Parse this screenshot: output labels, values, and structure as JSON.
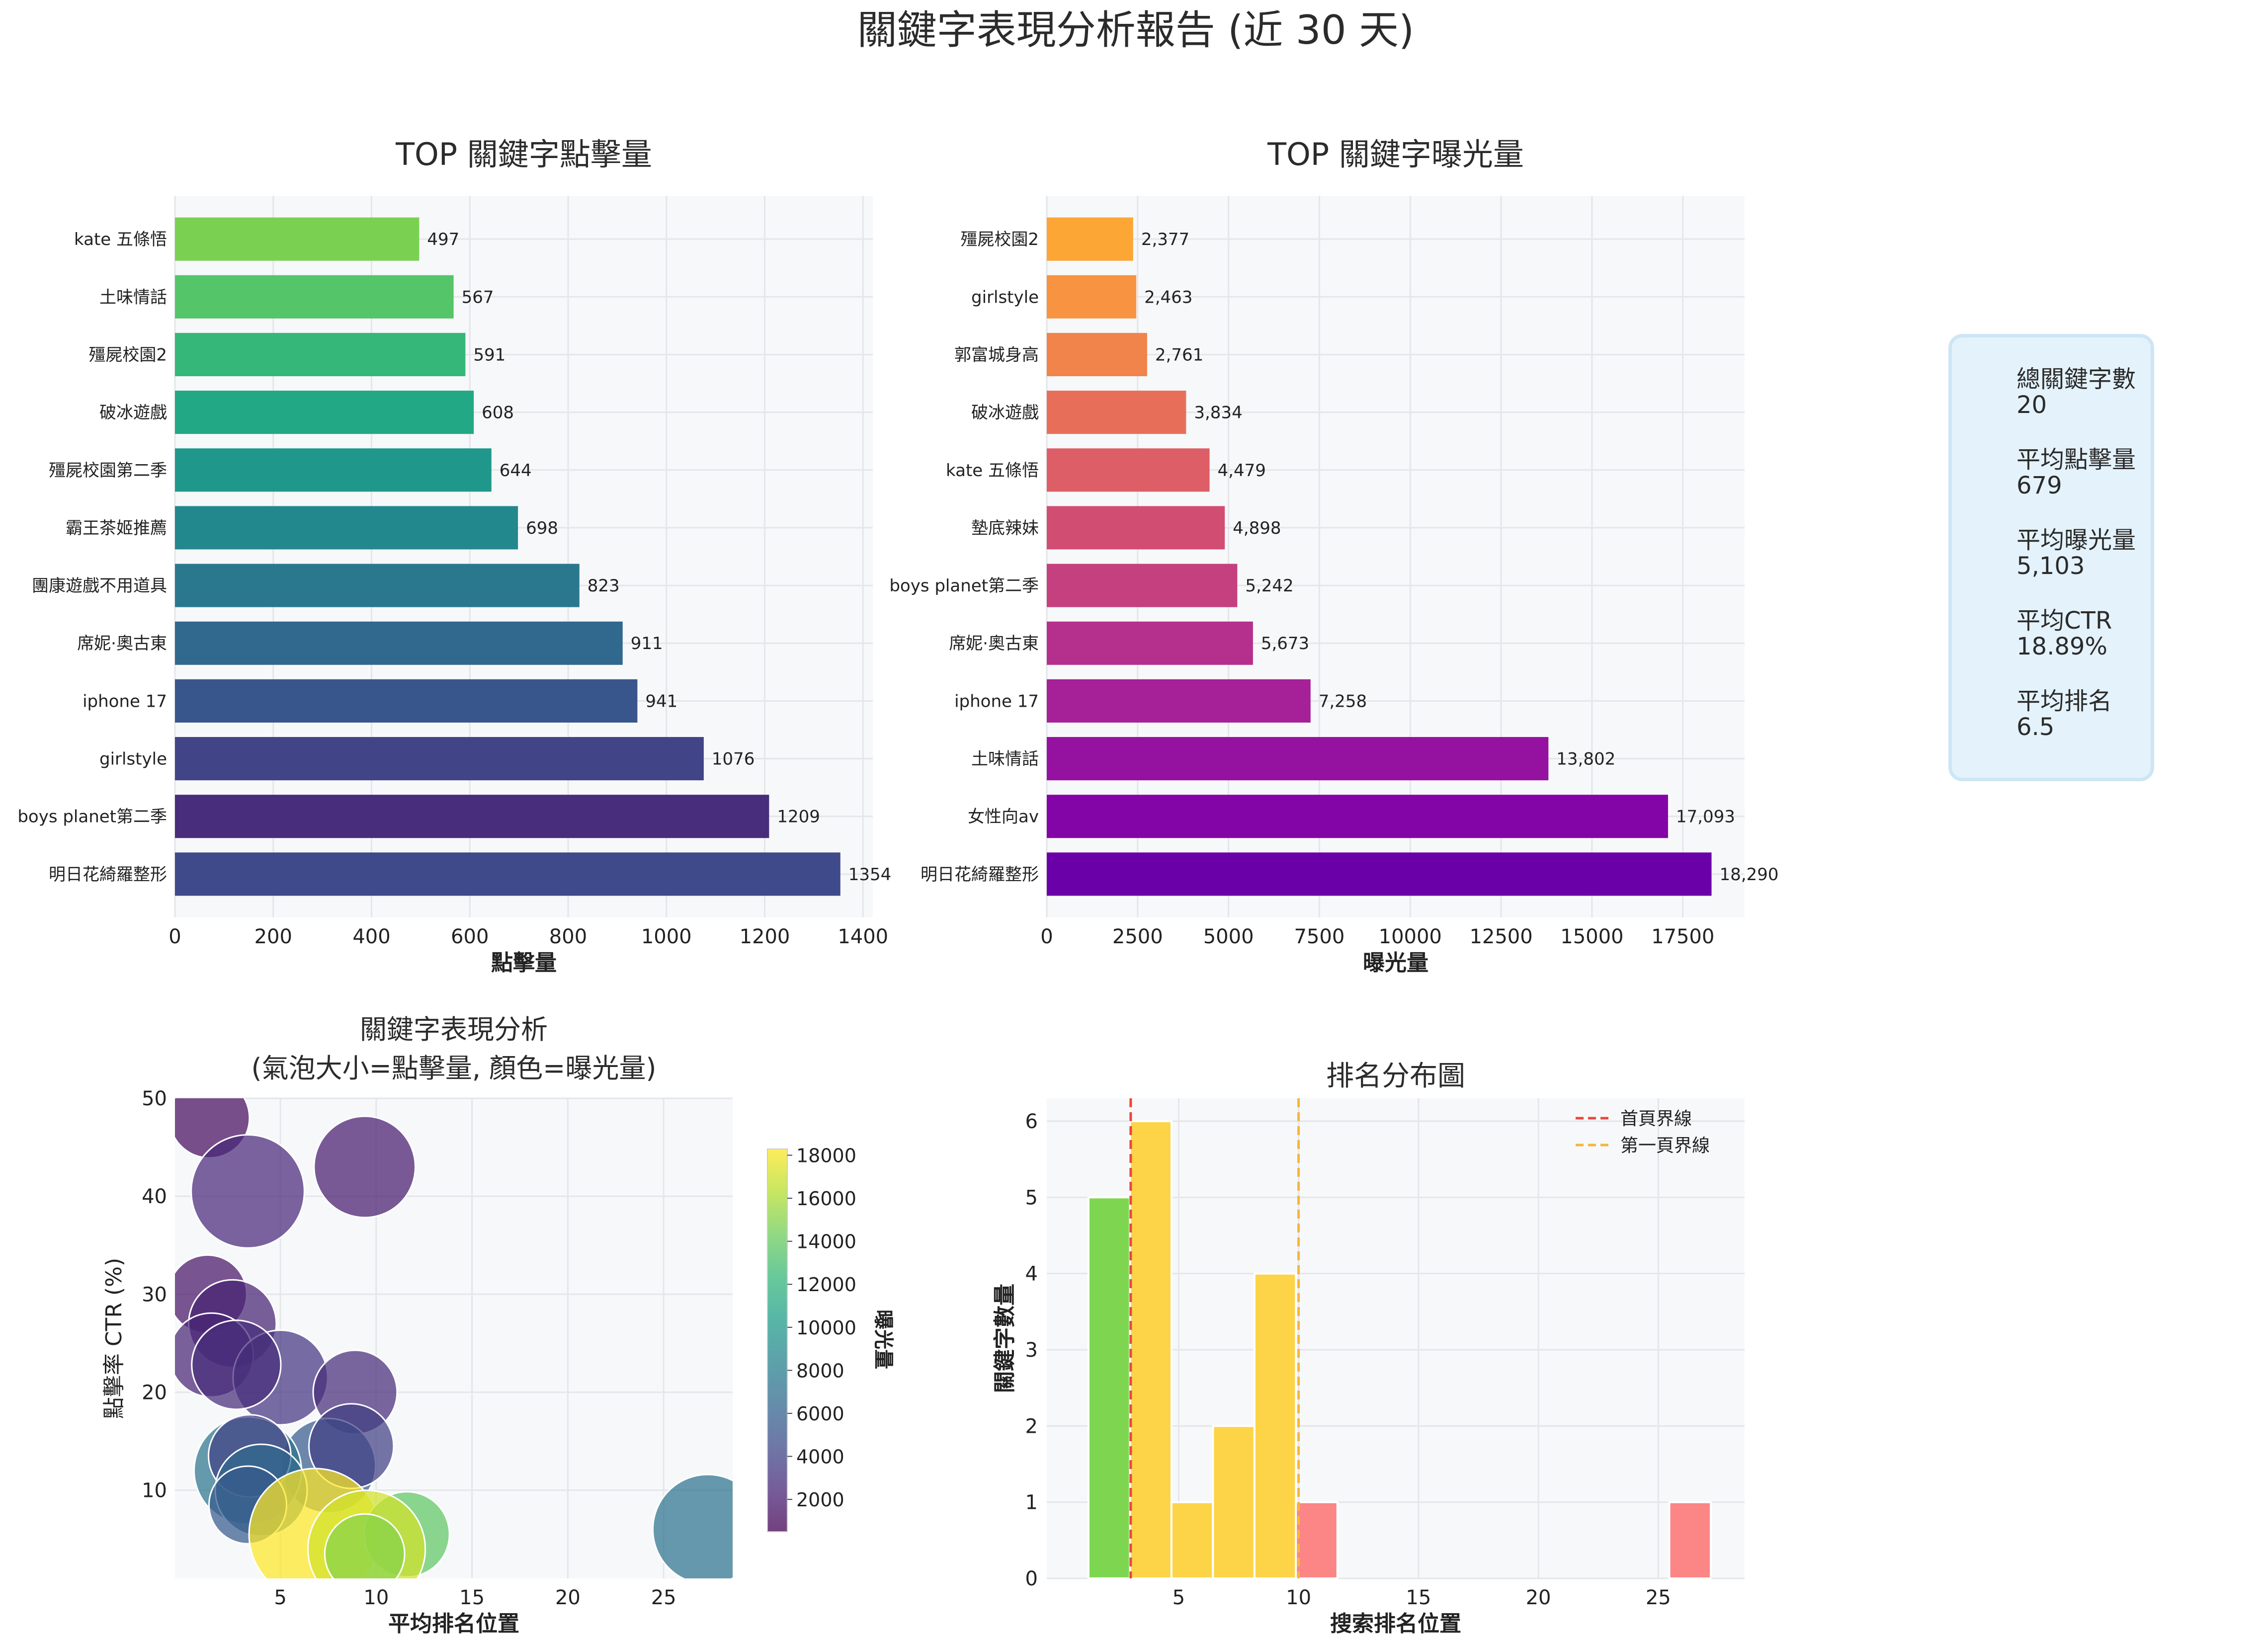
{
  "report_title": "關鍵字表現分析報告 (近 30 天)",
  "colors": {
    "bg": "#f7f8fa",
    "grid": "#e4e6ea",
    "text": "#2b2b2b",
    "first_page_line": "#e8473c",
    "page1_line": "#f4b63b",
    "hist_green": "#7ed650",
    "hist_yellow": "#fdd448",
    "hist_red": "#fc8585"
  },
  "stats_panel": {
    "items": [
      {
        "label": "總關鍵字數",
        "value": "20"
      },
      {
        "label": "平均點擊量",
        "value": "679"
      },
      {
        "label": "平均曝光量",
        "value": "5,103"
      },
      {
        "label": "平均CTR",
        "value": "18.89%"
      },
      {
        "label": "平均排名",
        "value": "6.5"
      }
    ]
  },
  "chart_data": [
    {
      "id": "clicks",
      "type": "bar",
      "orientation": "horizontal",
      "title": "TOP 關鍵字點擊量",
      "xlabel": "點擊量",
      "ylabel": "",
      "categories": [
        "kate 五條悟",
        "土味情話",
        "殭屍校園2",
        "破冰遊戲",
        "殭屍校園第二季",
        "霸王茶姬推薦",
        "團康遊戲不用道具",
        "席妮·奧古東",
        "iphone 17",
        "girlstyle",
        "boys planet第二季",
        "明日花綺羅整形"
      ],
      "values": [
        497,
        567,
        591,
        608,
        644,
        698,
        823,
        911,
        941,
        1076,
        1209,
        1354
      ],
      "value_labels": [
        "497",
        "567",
        "591",
        "608",
        "644",
        "698",
        "823",
        "911",
        "941",
        "1076",
        "1209",
        "1354"
      ],
      "xlim": [
        0,
        1420
      ],
      "xticks": [
        0,
        200,
        400,
        600,
        800,
        1000,
        1200,
        1400
      ],
      "xtick_labels": [
        "0",
        "200",
        "400",
        "600",
        "800",
        "1000",
        "1200",
        "1400"
      ],
      "colors": [
        "#7ad151",
        "#54c568",
        "#35b779",
        "#22a884",
        "#1f988b",
        "#23888e",
        "#2a788e",
        "#31688e",
        "#39568c",
        "#414487",
        "#472d7b",
        "#3f4a8a"
      ],
      "grid": true
    },
    {
      "id": "impressions",
      "type": "bar",
      "orientation": "horizontal",
      "title": "TOP 關鍵字曝光量",
      "xlabel": "曝光量",
      "ylabel": "",
      "categories": [
        "殭屍校園2",
        "girlstyle",
        "郭富城身高",
        "破冰遊戲",
        "kate 五條悟",
        "墊底辣妹",
        "boys planet第二季",
        "席妮·奧古東",
        "iphone 17",
        "土味情話",
        "女性向av",
        "明日花綺羅整形"
      ],
      "values": [
        2377,
        2463,
        2761,
        3834,
        4479,
        4898,
        5242,
        5673,
        7258,
        13802,
        17093,
        18290
      ],
      "value_labels": [
        "2,377",
        "2,463",
        "2,761",
        "3,834",
        "4,479",
        "4,898",
        "5,242",
        "5,673",
        "7,258",
        "13,802",
        "17,093",
        "18,290"
      ],
      "xlim": [
        0,
        19200
      ],
      "xticks": [
        0,
        2500,
        5000,
        7500,
        10000,
        12500,
        15000,
        17500
      ],
      "xtick_labels": [
        "0",
        "2500",
        "5000",
        "7500",
        "10000",
        "12500",
        "15000",
        "17500"
      ],
      "colors": [
        "#fca636",
        "#f89441",
        "#f1844b",
        "#e76f5a",
        "#dd5e66",
        "#d14e72",
        "#c5407e",
        "#b52f8c",
        "#a62098",
        "#9512a1",
        "#8405a7",
        "#6a00a8"
      ],
      "grid": true
    },
    {
      "id": "bubble",
      "type": "scatter",
      "title": "關鍵字表現分析",
      "subtitle": "(氣泡大小=點擊量, 顏色=曝光量)",
      "xlabel": "平均排名位置",
      "ylabel": "點擊率 CTR (%)",
      "xlim": [
        -0.5,
        28.6
      ],
      "ylim": [
        1,
        50
      ],
      "xticks": [
        5,
        10,
        15,
        20,
        25
      ],
      "xtick_labels": [
        "5",
        "10",
        "15",
        "20",
        "25"
      ],
      "yticks": [
        10,
        20,
        30,
        40,
        50
      ],
      "ytick_labels": [
        "10",
        "20",
        "30",
        "40",
        "50"
      ],
      "colorbar": {
        "label": "曝光量",
        "min": 500,
        "max": 18290,
        "ticks": [
          2000,
          4000,
          6000,
          8000,
          10000,
          12000,
          14000,
          16000,
          18000
        ],
        "tick_labels": [
          "2000",
          "4000",
          "6000",
          "8000",
          "10000",
          "12000",
          "14000",
          "16000",
          "18000"
        ]
      },
      "points": [
        {
          "x": 1.3,
          "y": 48.0,
          "clicks": 500,
          "impressions": 1040
        },
        {
          "x": 9.4,
          "y": 43.0,
          "clicks": 800,
          "impressions": 1860
        },
        {
          "x": 3.3,
          "y": 40.5,
          "clicks": 1000,
          "impressions": 2470
        },
        {
          "x": 1.2,
          "y": 30.0,
          "clicks": 480,
          "impressions": 1500
        },
        {
          "x": 2.5,
          "y": 27.0,
          "clicks": 600,
          "impressions": 2220
        },
        {
          "x": 1.4,
          "y": 23.8,
          "clicks": 550,
          "impressions": 2310
        },
        {
          "x": 5.0,
          "y": 21.5,
          "clicks": 700,
          "impressions": 3260
        },
        {
          "x": 2.7,
          "y": 22.8,
          "clicks": 620,
          "impressions": 2720
        },
        {
          "x": 8.9,
          "y": 20.0,
          "clicks": 550,
          "impressions": 2750
        },
        {
          "x": 7.5,
          "y": 12.5,
          "clicks": 700,
          "impressions": 5600
        },
        {
          "x": 8.7,
          "y": 14.5,
          "clicks": 560,
          "impressions": 3860
        },
        {
          "x": 3.3,
          "y": 12.0,
          "clicks": 900,
          "impressions": 7500
        },
        {
          "x": 3.4,
          "y": 13.5,
          "clicks": 530,
          "impressions": 3930
        },
        {
          "x": 4.0,
          "y": 10.0,
          "clicks": 660,
          "impressions": 6600
        },
        {
          "x": 3.3,
          "y": 8.5,
          "clicks": 470,
          "impressions": 5530
        },
        {
          "x": 6.8,
          "y": 5.5,
          "clicks": 1354,
          "impressions": 18290
        },
        {
          "x": 27.3,
          "y": 6.0,
          "clicks": 941,
          "impressions": 7258
        },
        {
          "x": 11.6,
          "y": 5.5,
          "clicks": 567,
          "impressions": 13802
        },
        {
          "x": 9.5,
          "y": 4.0,
          "clicks": 1076,
          "impressions": 17093
        },
        {
          "x": 9.4,
          "y": 3.5,
          "clicks": 498,
          "impressions": 15000
        }
      ],
      "grid": true
    },
    {
      "id": "rank_hist",
      "type": "bar",
      "title": "排名分布圖",
      "xlabel": "搜索排名位置",
      "ylabel": "關鍵字數量",
      "xlim": [
        -0.5,
        28.6
      ],
      "ylim": [
        0,
        6.3
      ],
      "xticks": [
        5,
        10,
        15,
        20,
        25
      ],
      "xtick_labels": [
        "5",
        "10",
        "15",
        "20",
        "25"
      ],
      "yticks": [
        0,
        1,
        2,
        3,
        4,
        5,
        6
      ],
      "ytick_labels": [
        "0",
        "1",
        "2",
        "3",
        "4",
        "5",
        "6"
      ],
      "bins": [
        {
          "x0": 1.24,
          "x1": 2.97,
          "count": 5,
          "group": "top3"
        },
        {
          "x0": 2.97,
          "x1": 4.7,
          "count": 6,
          "group": "page1"
        },
        {
          "x0": 4.7,
          "x1": 6.43,
          "count": 1,
          "group": "page1"
        },
        {
          "x0": 6.43,
          "x1": 8.16,
          "count": 2,
          "group": "page1"
        },
        {
          "x0": 8.16,
          "x1": 9.89,
          "count": 4,
          "group": "page1"
        },
        {
          "x0": 9.89,
          "x1": 11.62,
          "count": 1,
          "group": "beyond"
        },
        {
          "x0": 25.46,
          "x1": 27.19,
          "count": 1,
          "group": "beyond"
        }
      ],
      "ref_lines": [
        {
          "x": 3,
          "label": "首頁界線",
          "color": "#e8473c"
        },
        {
          "x": 10,
          "label": "第一頁界線",
          "color": "#f4b63b"
        }
      ],
      "legend_position": "top-right",
      "grid": true
    }
  ]
}
